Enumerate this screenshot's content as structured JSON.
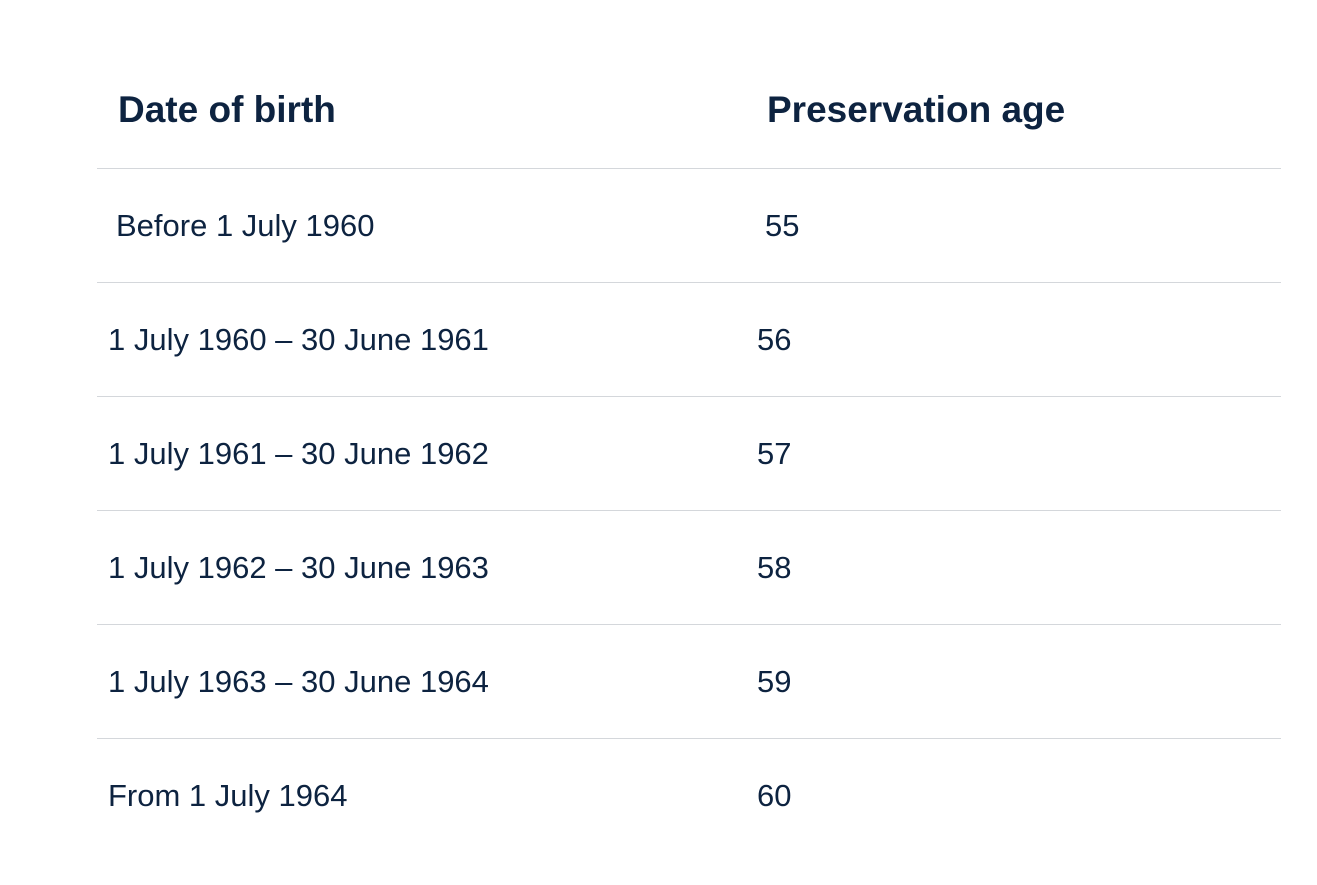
{
  "table": {
    "headers": [
      "Date of birth",
      "Preservation age"
    ],
    "rows": [
      [
        "Before 1 July 1960",
        "55"
      ],
      [
        "1 July 1960 – 30 June 1961",
        "56"
      ],
      [
        "1 July 1961 – 30 June 1962",
        "57"
      ],
      [
        "1 July 1962 – 30 June 1963",
        "58"
      ],
      [
        "1 July 1963 – 30 June 1964",
        "59"
      ],
      [
        "From 1 July 1964",
        "60"
      ]
    ]
  }
}
